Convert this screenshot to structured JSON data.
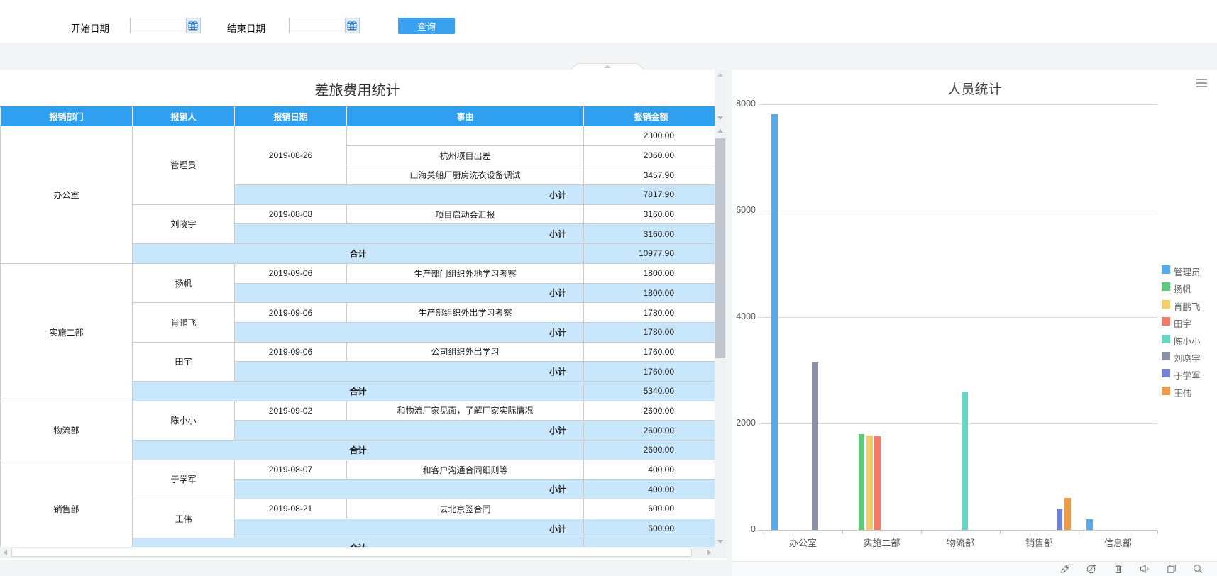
{
  "form": {
    "start_label": "开始日期",
    "end_label": "结束日期",
    "start_value": "",
    "end_value": "",
    "query_button": "查询"
  },
  "table": {
    "title": "差旅费用统计",
    "columns": [
      "报销部门",
      "报销人",
      "报销日期",
      "事由",
      "报销金额"
    ],
    "subtotal_label": "小计",
    "total_label": "合计",
    "groups": [
      {
        "dept": "办公室",
        "persons": [
          {
            "name": "管理员",
            "date": "2019-08-26",
            "items": [
              {
                "reason": "",
                "amount": "2300.00"
              },
              {
                "reason": "杭州项目出差",
                "amount": "2060.00"
              },
              {
                "reason": "山海关船厂厨房洗衣设备调试",
                "amount": "3457.90"
              }
            ],
            "subtotal": "7817.90"
          },
          {
            "name": "刘晓宇",
            "date": "2019-08-08",
            "items": [
              {
                "reason": "项目启动会汇报",
                "amount": "3160.00"
              }
            ],
            "subtotal": "3160.00"
          }
        ],
        "total": "10977.90"
      },
      {
        "dept": "实施二部",
        "persons": [
          {
            "name": "扬帆",
            "date": "2019-09-06",
            "items": [
              {
                "reason": "生产部门组织外地学习考察",
                "amount": "1800.00"
              }
            ],
            "subtotal": "1800.00"
          },
          {
            "name": "肖鹏飞",
            "date": "2019-09-06",
            "items": [
              {
                "reason": "生产部组织外出学习考察",
                "amount": "1780.00"
              }
            ],
            "subtotal": "1780.00"
          },
          {
            "name": "田宇",
            "date": "2019-09-06",
            "items": [
              {
                "reason": "公司组织外出学习",
                "amount": "1760.00"
              }
            ],
            "subtotal": "1760.00"
          }
        ],
        "total": "5340.00"
      },
      {
        "dept": "物流部",
        "persons": [
          {
            "name": "陈小小",
            "date": "2019-09-02",
            "items": [
              {
                "reason": "和物流厂家见面，了解厂家实际情况",
                "amount": "2600.00"
              }
            ],
            "subtotal": "2600.00"
          }
        ],
        "total": "2600.00"
      },
      {
        "dept": "销售部",
        "persons": [
          {
            "name": "于学军",
            "date": "2019-08-07",
            "items": [
              {
                "reason": "和客户沟通合同细则等",
                "amount": "400.00"
              }
            ],
            "subtotal": "400.00"
          },
          {
            "name": "王伟",
            "date": "2019-08-21",
            "items": [
              {
                "reason": "去北京签合同",
                "amount": "600.00"
              }
            ],
            "subtotal": "600.00"
          }
        ],
        "total": ""
      }
    ]
  },
  "chart_data": {
    "type": "bar",
    "title": "人员统计",
    "categories": [
      "办公室",
      "实施二部",
      "物流部",
      "销售部",
      "信息部"
    ],
    "series": [
      {
        "name": "管理员",
        "color": "#54abee",
        "values": [
          7817.9,
          null,
          null,
          null,
          200
        ]
      },
      {
        "name": "扬帆",
        "color": "#5fc97e",
        "values": [
          null,
          1800,
          null,
          null,
          null
        ]
      },
      {
        "name": "肖鹏飞",
        "color": "#f4ce67",
        "values": [
          null,
          1780,
          null,
          null,
          null
        ]
      },
      {
        "name": "田宇",
        "color": "#f5796b",
        "values": [
          null,
          1760,
          null,
          null,
          null
        ]
      },
      {
        "name": "陈小小",
        "color": "#66d6c3",
        "values": [
          null,
          null,
          2600,
          null,
          null
        ]
      },
      {
        "name": "刘晓宇",
        "color": "#8b90a7",
        "values": [
          3160,
          null,
          null,
          null,
          null
        ]
      },
      {
        "name": "于学军",
        "color": "#7282d9",
        "values": [
          null,
          null,
          null,
          400,
          null
        ]
      },
      {
        "name": "王伟",
        "color": "#ee9a4d",
        "values": [
          null,
          null,
          null,
          600,
          null
        ]
      }
    ],
    "ylim": [
      0,
      8000
    ],
    "yticks": [
      0,
      2000,
      4000,
      6000,
      8000
    ],
    "legend_position": "right",
    "grid": true
  },
  "toolbar_icons": [
    "rocket",
    "performance",
    "trash",
    "audio",
    "windows",
    "zoom"
  ]
}
